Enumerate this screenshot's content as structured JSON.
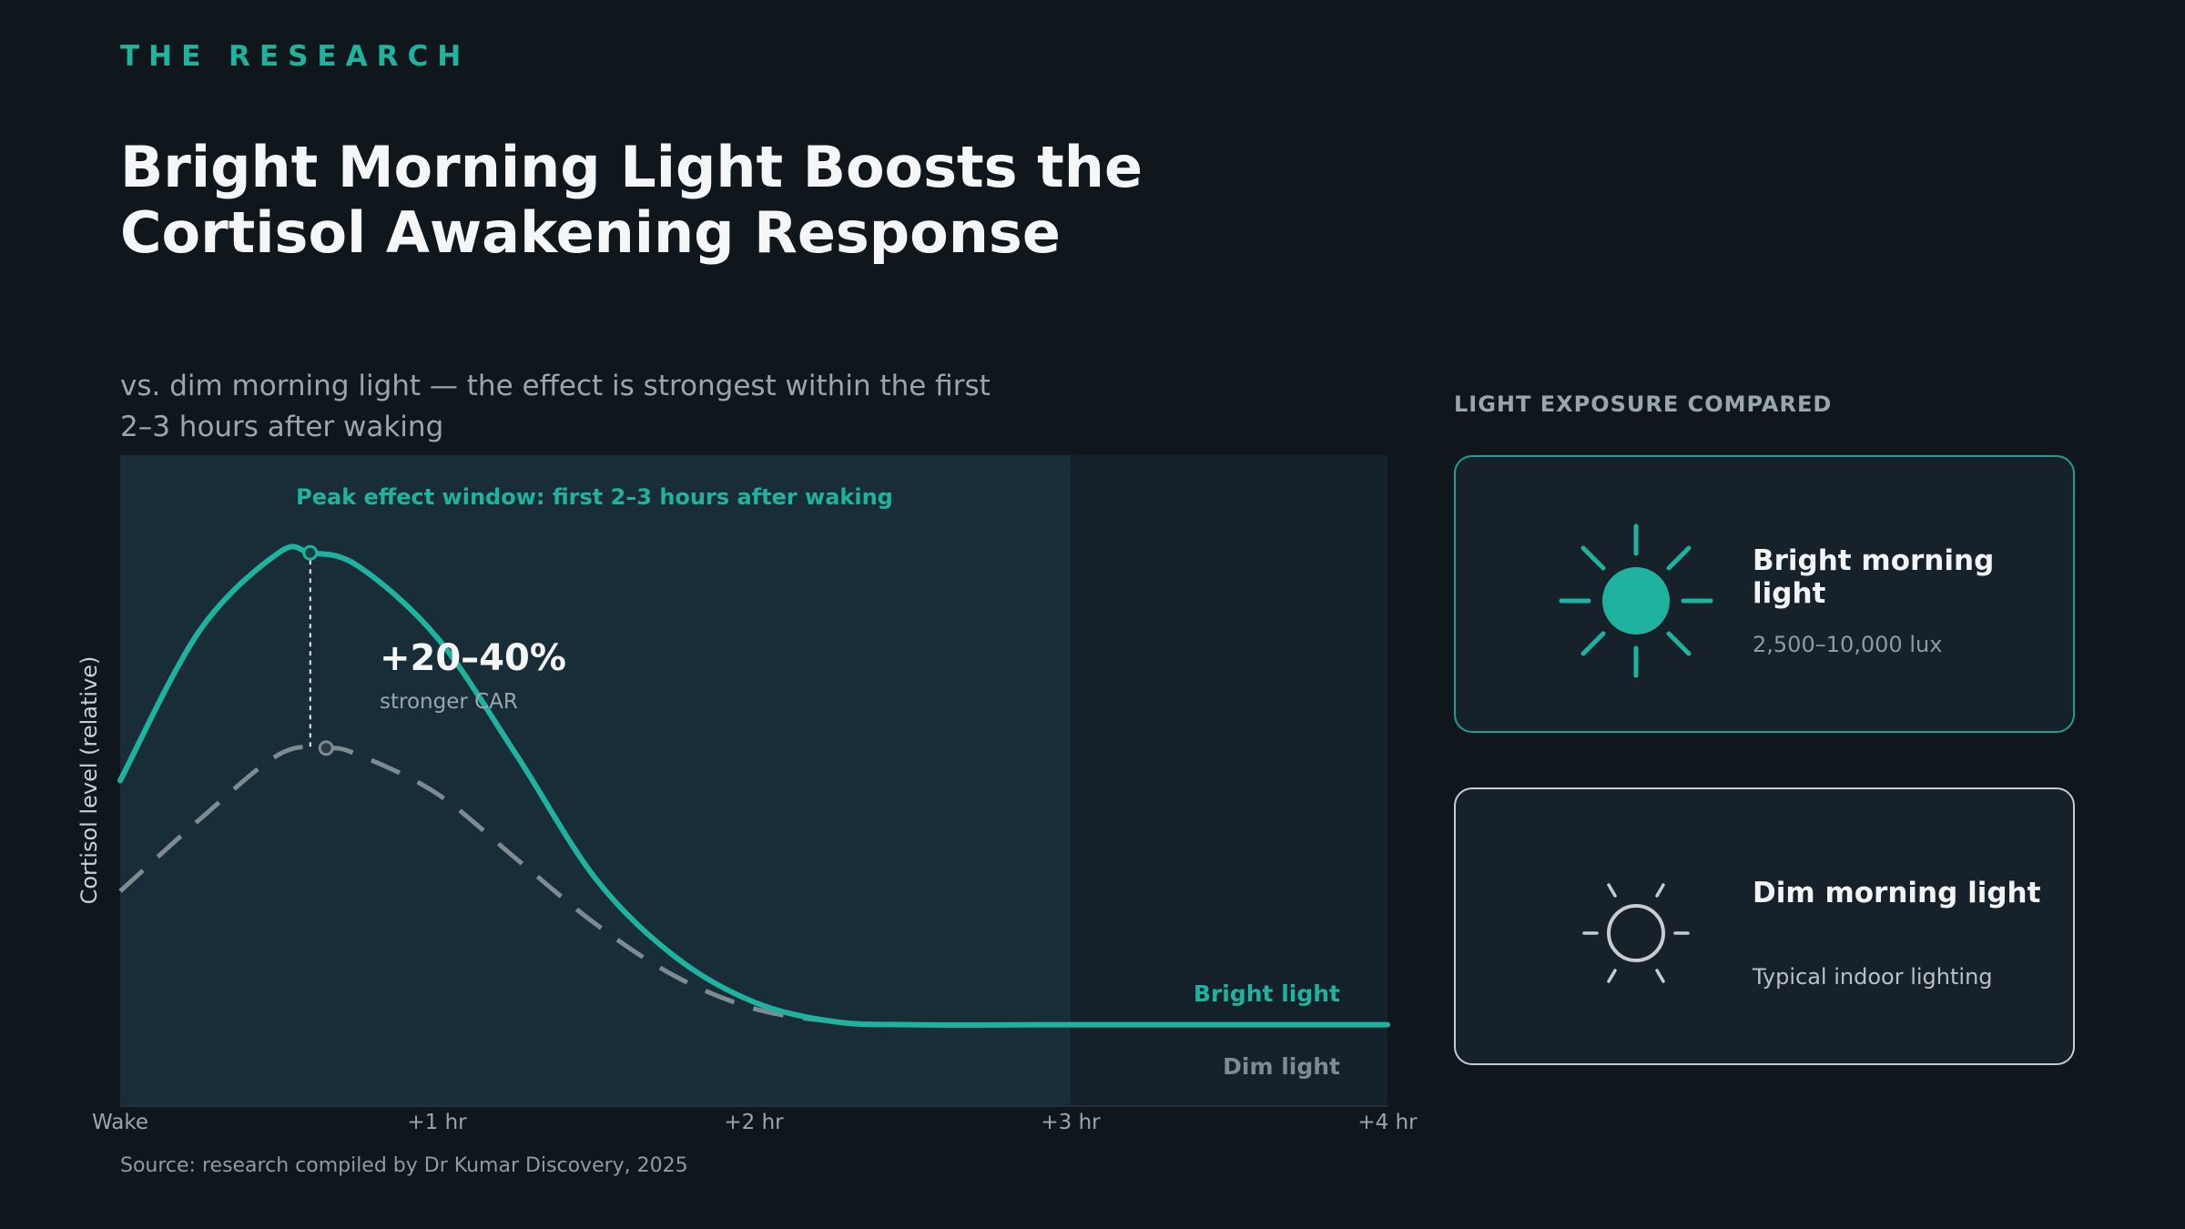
{
  "header": {
    "eyebrow": "THE RESEARCH",
    "title_line1": "Bright Morning Light Boosts the",
    "title_line2": "Cortisol Awakening Response",
    "subtitle_line1": "vs. dim morning light — the effect is strongest within the first",
    "subtitle_line2": "2–3 hours after waking"
  },
  "chart_data": {
    "type": "line",
    "ylabel": "Cortisol level (relative)",
    "xlabel": "",
    "x_ticks": [
      "Wake",
      "+1 hr",
      "+2 hr",
      "+3 hr",
      "+4 hr"
    ],
    "xlim_hours": [
      0,
      4
    ],
    "ylim": [
      0,
      1
    ],
    "grid": false,
    "series": [
      {
        "name": "Bright light",
        "style": "solid",
        "color": "#1fb39f",
        "x": [
          0,
          0.25,
          0.5,
          0.6,
          0.75,
          1.0,
          1.25,
          1.5,
          1.75,
          2.0,
          2.25,
          2.5,
          3.0,
          3.5,
          4.0
        ],
        "y": [
          0.5,
          0.73,
          0.85,
          0.85,
          0.83,
          0.72,
          0.54,
          0.35,
          0.23,
          0.16,
          0.13,
          0.125,
          0.125,
          0.125,
          0.125
        ]
      },
      {
        "name": "Dim light",
        "style": "dashed",
        "color": "#7e8b93",
        "x": [
          0,
          0.25,
          0.5,
          0.65,
          0.75,
          1.0,
          1.25,
          1.5,
          1.75,
          2.0,
          2.25,
          2.5,
          3.0,
          3.5,
          4.0
        ],
        "y": [
          0.33,
          0.44,
          0.54,
          0.55,
          0.54,
          0.48,
          0.38,
          0.28,
          0.2,
          0.15,
          0.13,
          0.125,
          0.125,
          0.125,
          0.125
        ]
      }
    ],
    "peak_points": [
      {
        "series": "Bright light",
        "x": 0.6,
        "y": 0.85
      },
      {
        "series": "Dim light",
        "x": 0.65,
        "y": 0.55
      }
    ],
    "shaded_window": {
      "x_start": 0,
      "x_end": 3,
      "label": "Peak effect window: first 2–3 hours after waking"
    },
    "annotation": {
      "value": "+20–40%",
      "text": "stronger CAR"
    },
    "series_labels": {
      "bright": "Bright light",
      "dim": "Dim light"
    }
  },
  "sidebar": {
    "heading": "LIGHT EXPOSURE COMPARED",
    "cards": [
      {
        "title": "Bright morning light",
        "subtitle": "2,500–10,000 lux",
        "icon": "sun-filled-icon"
      },
      {
        "title": "Dim morning light",
        "subtitle": "Typical indoor lighting",
        "icon": "sun-outline-icon"
      }
    ]
  },
  "footer": {
    "source": "Source: research compiled by Dr Kumar Discovery, 2025"
  },
  "colors": {
    "accent": "#1fb39f",
    "dim": "#7e8b93",
    "background": "#10171c",
    "panel": "#17212a",
    "window": "#182d37"
  }
}
